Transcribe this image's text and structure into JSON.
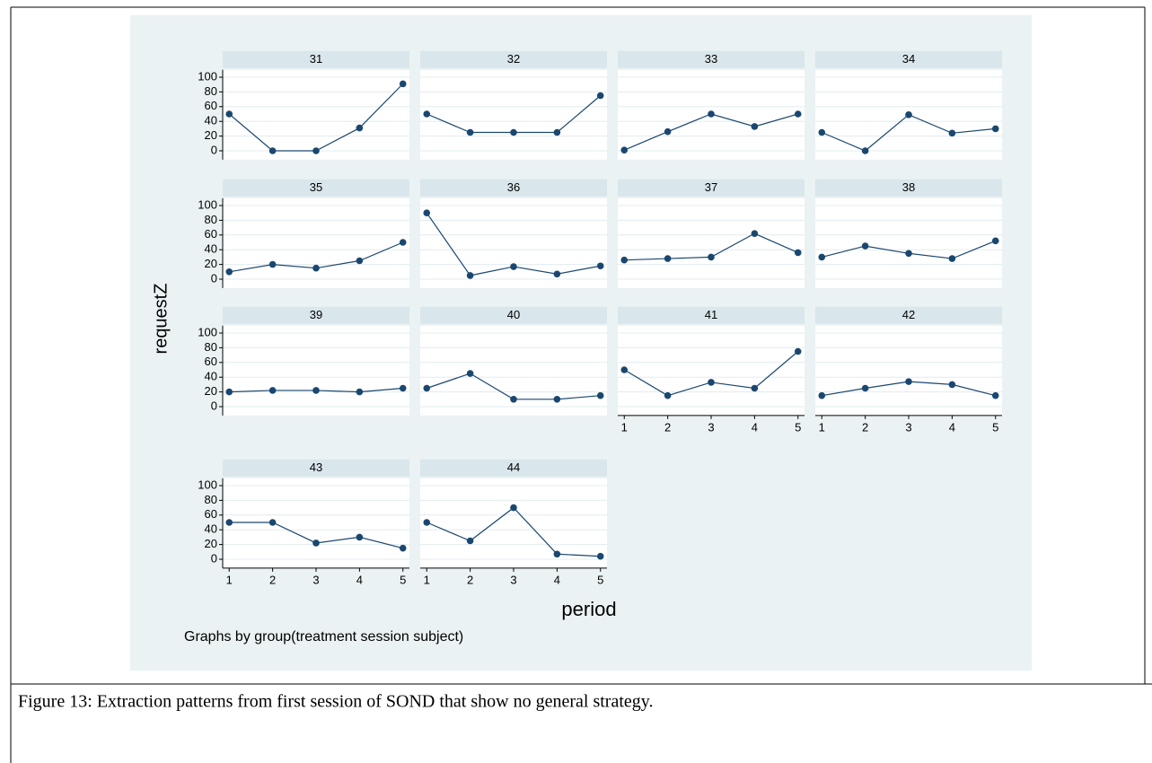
{
  "chart_data": [
    {
      "type": "line",
      "title": "31",
      "x": [
        1,
        2,
        3,
        4,
        5
      ],
      "values": [
        50,
        0,
        0,
        31,
        91
      ],
      "color": "#1a476f",
      "xlim": [
        0.85,
        5.15
      ],
      "ylim": [
        -12,
        110
      ],
      "yticks": [
        0,
        20,
        40,
        60,
        80,
        100
      ],
      "grid": true
    },
    {
      "type": "line",
      "title": "32",
      "x": [
        1,
        2,
        3,
        4,
        5
      ],
      "values": [
        50,
        25,
        25,
        25,
        75
      ],
      "color": "#1a476f",
      "xlim": [
        0.85,
        5.15
      ],
      "ylim": [
        -12,
        110
      ],
      "yticks": [
        0,
        20,
        40,
        60,
        80,
        100
      ],
      "grid": true
    },
    {
      "type": "line",
      "title": "33",
      "x": [
        1,
        2,
        3,
        4,
        5
      ],
      "values": [
        1,
        26,
        50,
        33,
        50
      ],
      "color": "#1a476f",
      "xlim": [
        0.85,
        5.15
      ],
      "ylim": [
        -12,
        110
      ],
      "yticks": [
        0,
        20,
        40,
        60,
        80,
        100
      ],
      "grid": true
    },
    {
      "type": "line",
      "title": "34",
      "x": [
        1,
        2,
        3,
        4,
        5
      ],
      "values": [
        25,
        0,
        49,
        24,
        30
      ],
      "color": "#1a476f",
      "xlim": [
        0.85,
        5.15
      ],
      "ylim": [
        -12,
        110
      ],
      "yticks": [
        0,
        20,
        40,
        60,
        80,
        100
      ],
      "grid": true
    },
    {
      "type": "line",
      "title": "35",
      "x": [
        1,
        2,
        3,
        4,
        5
      ],
      "values": [
        10,
        20,
        15,
        25,
        50
      ],
      "color": "#1a476f",
      "xlim": [
        0.85,
        5.15
      ],
      "ylim": [
        -12,
        110
      ],
      "yticks": [
        0,
        20,
        40,
        60,
        80,
        100
      ],
      "grid": true
    },
    {
      "type": "line",
      "title": "36",
      "x": [
        1,
        2,
        3,
        4,
        5
      ],
      "values": [
        90,
        5,
        17,
        7,
        18
      ],
      "color": "#1a476f",
      "xlim": [
        0.85,
        5.15
      ],
      "ylim": [
        -12,
        110
      ],
      "yticks": [
        0,
        20,
        40,
        60,
        80,
        100
      ],
      "grid": true
    },
    {
      "type": "line",
      "title": "37",
      "x": [
        1,
        2,
        3,
        4,
        5
      ],
      "values": [
        26,
        28,
        30,
        62,
        36
      ],
      "color": "#1a476f",
      "xlim": [
        0.85,
        5.15
      ],
      "ylim": [
        -12,
        110
      ],
      "yticks": [
        0,
        20,
        40,
        60,
        80,
        100
      ],
      "grid": true
    },
    {
      "type": "line",
      "title": "38",
      "x": [
        1,
        2,
        3,
        4,
        5
      ],
      "values": [
        30,
        45,
        35,
        28,
        52
      ],
      "color": "#1a476f",
      "xlim": [
        0.85,
        5.15
      ],
      "ylim": [
        -12,
        110
      ],
      "yticks": [
        0,
        20,
        40,
        60,
        80,
        100
      ],
      "grid": true
    },
    {
      "type": "line",
      "title": "39",
      "x": [
        1,
        2,
        3,
        4,
        5
      ],
      "values": [
        20,
        22,
        22,
        20,
        25
      ],
      "color": "#1a476f",
      "xlim": [
        0.85,
        5.15
      ],
      "ylim": [
        -12,
        110
      ],
      "yticks": [
        0,
        20,
        40,
        60,
        80,
        100
      ],
      "grid": true
    },
    {
      "type": "line",
      "title": "40",
      "x": [
        1,
        2,
        3,
        4,
        5
      ],
      "values": [
        25,
        45,
        10,
        10,
        15
      ],
      "color": "#1a476f",
      "xlim": [
        0.85,
        5.15
      ],
      "ylim": [
        -12,
        110
      ],
      "yticks": [
        0,
        20,
        40,
        60,
        80,
        100
      ],
      "grid": true
    },
    {
      "type": "line",
      "title": "41",
      "x": [
        1,
        2,
        3,
        4,
        5
      ],
      "values": [
        50,
        15,
        33,
        25,
        75
      ],
      "color": "#1a476f",
      "xlim": [
        0.85,
        5.15
      ],
      "ylim": [
        -12,
        110
      ],
      "yticks": [
        0,
        20,
        40,
        60,
        80,
        100
      ],
      "xticks": [
        1,
        2,
        3,
        4,
        5
      ],
      "grid": true
    },
    {
      "type": "line",
      "title": "42",
      "x": [
        1,
        2,
        3,
        4,
        5
      ],
      "values": [
        15,
        25,
        34,
        30,
        15
      ],
      "color": "#1a476f",
      "xlim": [
        0.85,
        5.15
      ],
      "ylim": [
        -12,
        110
      ],
      "yticks": [
        0,
        20,
        40,
        60,
        80,
        100
      ],
      "xticks": [
        1,
        2,
        3,
        4,
        5
      ],
      "grid": true
    },
    {
      "type": "line",
      "title": "43",
      "x": [
        1,
        2,
        3,
        4,
        5
      ],
      "values": [
        50,
        50,
        22,
        30,
        15
      ],
      "color": "#1a476f",
      "xlim": [
        0.85,
        5.15
      ],
      "ylim": [
        -12,
        110
      ],
      "yticks": [
        0,
        20,
        40,
        60,
        80,
        100
      ],
      "xticks": [
        1,
        2,
        3,
        4,
        5
      ],
      "grid": true
    },
    {
      "type": "line",
      "title": "44",
      "x": [
        1,
        2,
        3,
        4,
        5
      ],
      "values": [
        50,
        25,
        70,
        7,
        4
      ],
      "color": "#1a476f",
      "xlim": [
        0.85,
        5.15
      ],
      "ylim": [
        -12,
        110
      ],
      "yticks": [
        0,
        20,
        40,
        60,
        80,
        100
      ],
      "xticks": [
        1,
        2,
        3,
        4,
        5
      ],
      "grid": true
    }
  ],
  "y_label": "requestZ",
  "x_label": "period",
  "note": "Graphs by group(treatment session subject)",
  "caption": "Figure 13: Extraction patterns from first session of SOND that show no general strategy."
}
